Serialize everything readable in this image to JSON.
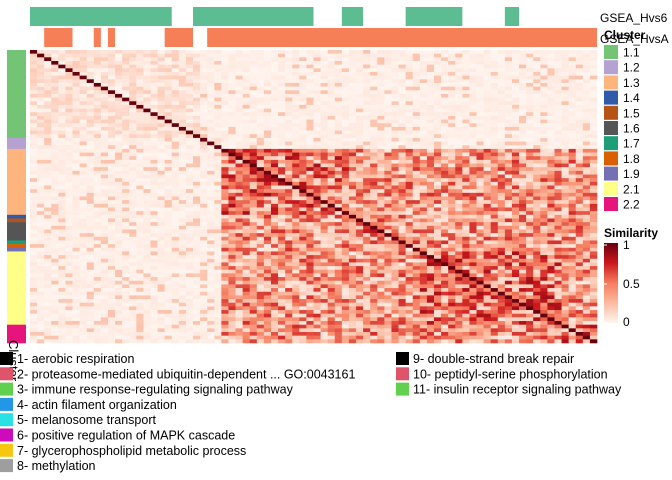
{
  "chart_data": {
    "type": "heatmap",
    "n": 80,
    "annotation_tracks": [
      {
        "name": "GSEA_Hvs6",
        "color": "#5BBD91",
        "present_ranges": [
          [
            0,
            19
          ],
          [
            23,
            39
          ],
          [
            44,
            46
          ],
          [
            53,
            60
          ],
          [
            67,
            68
          ]
        ]
      },
      {
        "name": "GSEA_HvsA",
        "color": "#F77F57",
        "present_ranges": [
          [
            2,
            5
          ],
          [
            9,
            9
          ],
          [
            11,
            11
          ],
          [
            19,
            22
          ],
          [
            25,
            79
          ]
        ]
      }
    ],
    "cluster_legend": {
      "title": "Cluster",
      "items": [
        {
          "label": "1.1",
          "color": "#74C476"
        },
        {
          "label": "1.2",
          "color": "#B5A2D3"
        },
        {
          "label": "1.3",
          "color": "#FDB47D"
        },
        {
          "label": "1.4",
          "color": "#2F5BAA"
        },
        {
          "label": "1.5",
          "color": "#B65418"
        },
        {
          "label": "1.6",
          "color": "#555555"
        },
        {
          "label": "1.7",
          "color": "#1B9E77"
        },
        {
          "label": "1.8",
          "color": "#D95F02"
        },
        {
          "label": "1.9",
          "color": "#7570B3"
        },
        {
          "label": "2.1",
          "color": "#FFFF88"
        },
        {
          "label": "2.2",
          "color": "#E7157B"
        }
      ]
    },
    "cluster_sizes": [
      {
        "cluster": "1.1",
        "count": 24
      },
      {
        "cluster": "1.2",
        "count": 3
      },
      {
        "cluster": "1.3",
        "count": 18
      },
      {
        "cluster": "1.4",
        "count": 1
      },
      {
        "cluster": "1.5",
        "count": 1
      },
      {
        "cluster": "1.6",
        "count": 5
      },
      {
        "cluster": "1.7",
        "count": 1
      },
      {
        "cluster": "1.8",
        "count": 1
      },
      {
        "cluster": "1.9",
        "count": 1
      },
      {
        "cluster": "2.1",
        "count": 20
      },
      {
        "cluster": "2.2",
        "count": 5
      }
    ],
    "color_scale": {
      "title": "Similarity",
      "min": 0,
      "max": 1,
      "ticks": [
        "1",
        "0.5",
        "0"
      ],
      "low_color": "#FFF5F0",
      "mid_color": "#F57C5F",
      "high_color": "#67000D"
    },
    "row_axis_label": "Cluster",
    "go_legend": {
      "left": [
        {
          "label": "1- aerobic respiration",
          "color": "#000000"
        },
        {
          "label": "2- proteasome-mediated ubiquitin-dependent ... GO:0043161",
          "color": "#DF536B"
        },
        {
          "label": "3- immune response-regulating signaling pathway",
          "color": "#61D04F"
        },
        {
          "label": "4- actin filament organization",
          "color": "#2297E6"
        },
        {
          "label": "5- melanosome transport",
          "color": "#28E2E5"
        },
        {
          "label": "6- positive regulation of MAPK cascade",
          "color": "#CD0BBC"
        },
        {
          "label": "7- glycerophospholipid metabolic process",
          "color": "#F5C710"
        },
        {
          "label": "8- methylation",
          "color": "#9E9E9E"
        }
      ],
      "right": [
        {
          "label": "9- double-strand break repair",
          "color": "#000000"
        },
        {
          "label": "10- peptidyl-serine phosphorylation",
          "color": "#DF536B"
        },
        {
          "label": "11- insulin receptor signaling pathway",
          "color": "#61D04F"
        }
      ]
    }
  }
}
